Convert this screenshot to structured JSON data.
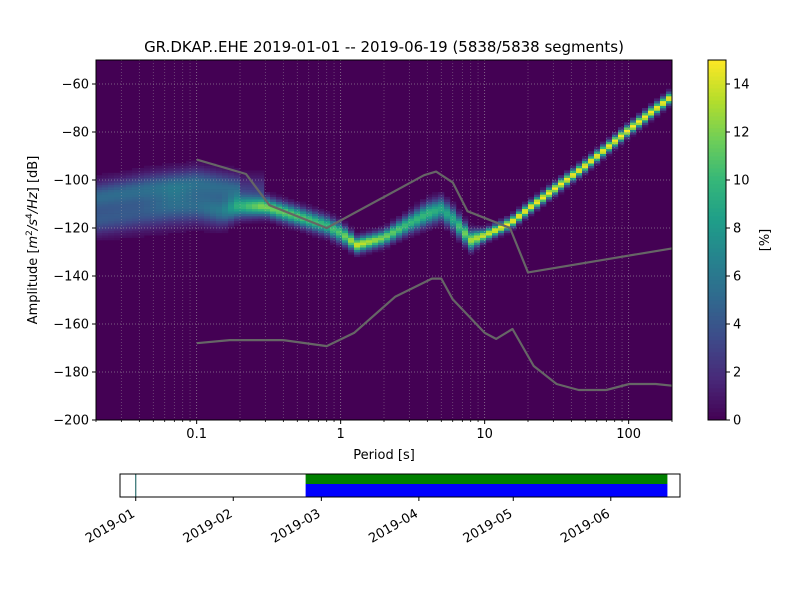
{
  "chart_data": {
    "type": "heatmap",
    "title": "GR.DKAP..EHE   2019-01-01 -- 2019-06-19  (5838/5838 segments)",
    "xlabel": "Period [s]",
    "ylabel_parts": {
      "pre": "Amplitude [",
      "m": "m",
      "exp2": "2",
      "s": "/s",
      "exp4": "4",
      "hz": "/Hz",
      "post": "] [dB]"
    },
    "x_scale": "log",
    "xlim": [
      0.02,
      200
    ],
    "ylim": [
      -200,
      -50
    ],
    "x_ticks": [
      {
        "value": 0.1,
        "label": "0.1"
      },
      {
        "value": 1,
        "label": "1"
      },
      {
        "value": 10,
        "label": "10"
      },
      {
        "value": 100,
        "label": "100"
      }
    ],
    "y_ticks": [
      {
        "value": -60,
        "label": "−60"
      },
      {
        "value": -80,
        "label": "−80"
      },
      {
        "value": -100,
        "label": "−100"
      },
      {
        "value": -120,
        "label": "−120"
      },
      {
        "value": -140,
        "label": "−140"
      },
      {
        "value": -160,
        "label": "−160"
      },
      {
        "value": -180,
        "label": "−180"
      },
      {
        "value": -200,
        "label": "−200"
      }
    ],
    "grid": true,
    "colormap": "viridis",
    "colorbar": {
      "label": "[%]",
      "range": [
        0,
        15
      ],
      "ticks": [
        {
          "value": 0,
          "label": "0"
        },
        {
          "value": 2,
          "label": "2"
        },
        {
          "value": 4,
          "label": "4"
        },
        {
          "value": 6,
          "label": "6"
        },
        {
          "value": 8,
          "label": "8"
        },
        {
          "value": 10,
          "label": "10"
        },
        {
          "value": 12,
          "label": "12"
        },
        {
          "value": 14,
          "label": "14"
        }
      ]
    },
    "psd_ridge": {
      "x": [
        0.02,
        0.04,
        0.07,
        0.1,
        0.15,
        0.2,
        0.3,
        0.5,
        0.8,
        1.0,
        1.3,
        2.0,
        3.0,
        4.0,
        5.0,
        6.0,
        8.0,
        10,
        15,
        20,
        30,
        50,
        100,
        200
      ],
      "y": [
        -117,
        -114,
        -111,
        -111,
        -113,
        -111,
        -111,
        -115,
        -119,
        -122,
        -127,
        -124,
        -118,
        -114,
        -112,
        -116,
        -125,
        -123,
        -118,
        -112,
        -104,
        -94,
        -79,
        -65
      ],
      "spread_db": [
        8,
        9,
        10,
        9,
        8,
        6,
        5,
        5,
        5,
        5,
        4,
        4,
        5,
        6,
        6,
        6,
        5,
        3,
        3,
        3,
        3,
        3,
        3,
        3
      ],
      "peak_percent": [
        4,
        4,
        5,
        5,
        6,
        9,
        12,
        11,
        10,
        11,
        14,
        12,
        10,
        10,
        9,
        9,
        13,
        14,
        15,
        15,
        15,
        15,
        15,
        15
      ]
    },
    "secondary_ridge": {
      "x": [
        0.02,
        0.05,
        0.1,
        0.2
      ],
      "y": [
        -107,
        -103,
        -101,
        -104
      ]
    },
    "reference_curves": [
      {
        "x": [
          0.1,
          0.22,
          0.32,
          0.8,
          3.8,
          4.6,
          6.0,
          7.6,
          15,
          20,
          200
        ],
        "y": [
          -91.5,
          -97.5,
          -110.5,
          -120,
          -98,
          -96.5,
          -101,
          -113,
          -120,
          -138.5,
          -128.5
        ]
      },
      {
        "x": [
          0.1,
          0.17,
          0.4,
          0.8,
          1.24,
          2.4,
          4.3,
          5.0,
          6.0,
          10,
          12,
          15.6,
          21.9,
          31.6,
          45,
          70,
          101,
          154,
          200
        ],
        "y": [
          -168,
          -166.7,
          -166.7,
          -169.2,
          -163.7,
          -148.6,
          -141.1,
          -141.1,
          -149.7,
          -163.7,
          -166.2,
          -162.1,
          -177.5,
          -185,
          -187.5,
          -187.5,
          -185,
          -185,
          -185.7
        ]
      }
    ],
    "coverage": {
      "date_ticks": [
        "2019-01",
        "2019-02",
        "2019-03",
        "2019-04",
        "2019-05",
        "2019-06"
      ],
      "date_range": [
        "2018-12-27",
        "2019-06-23"
      ],
      "blue_span": [
        "2019-02-24",
        "2019-06-19"
      ],
      "green_span": [
        "2019-02-24",
        "2019-06-19"
      ],
      "marker_date": "2019-01-01"
    },
    "colors": {
      "grey_curve": "#666666",
      "coverage_blue": "#0000ff",
      "coverage_green": "#008000"
    }
  }
}
